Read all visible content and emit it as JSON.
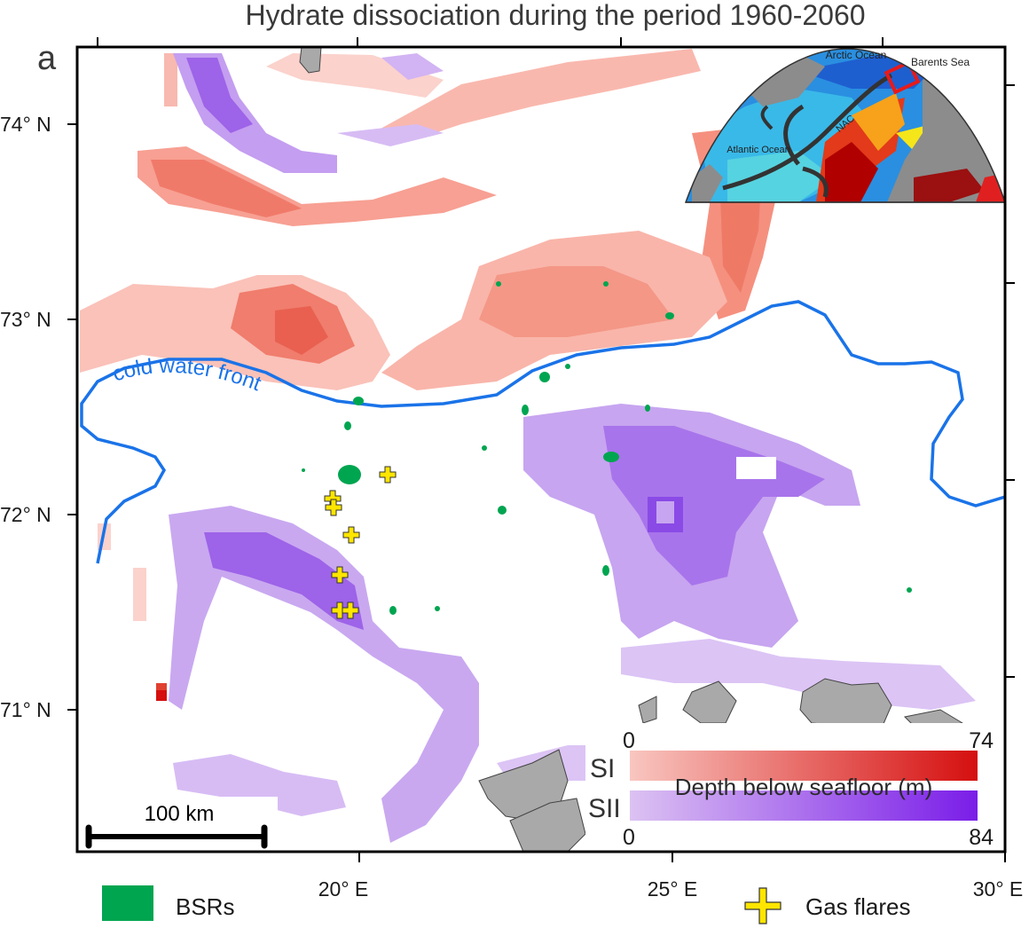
{
  "figure": {
    "title": "Hydrate dissociation during the period 1960-2060",
    "panel_label": "a"
  },
  "axes": {
    "lat_ticks": [
      "74° N",
      "73° N",
      "72° N",
      "71° N"
    ],
    "lon_ticks": [
      "20° E",
      "25° E",
      "30° E"
    ]
  },
  "annotations": {
    "front_label": "cold water front",
    "scale_bar": "100 km"
  },
  "colorbar": {
    "title": "Depth below seafloor (m)",
    "si": {
      "label": "SI",
      "min": "0",
      "max": "74",
      "color_low": "#f9c6c0",
      "color_high": "#d50f0f"
    },
    "sii": {
      "label": "SII",
      "min": "0",
      "max": "84",
      "color_low": "#dcc2f2",
      "color_high": "#7a1de8"
    }
  },
  "inset": {
    "labels": {
      "arctic": "Arctic Ocean",
      "barents": "Barents Sea",
      "atlantic": "Atlantic Ocean",
      "nac": "NAC"
    }
  },
  "legend": {
    "bsr_label": "BSRs",
    "flare_label": "Gas flares",
    "bsr_color": "#00a550",
    "flare_color": "#ffe600"
  },
  "colors": {
    "front_line": "#1a73e8",
    "land": "#a9a9a9"
  }
}
